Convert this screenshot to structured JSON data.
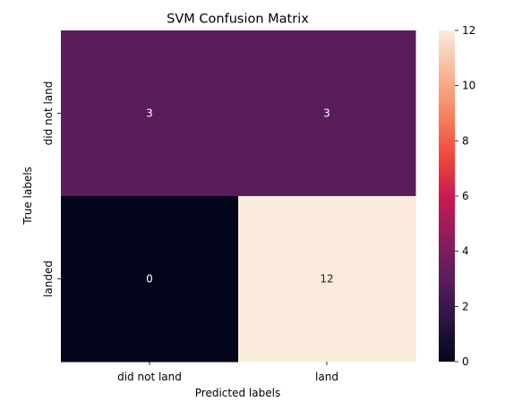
{
  "chart_data": {
    "type": "heatmap",
    "title": "SVM Confusion Matrix",
    "xlabel": "Predicted labels",
    "ylabel": "True labels",
    "x_categories": [
      "did not land",
      "land"
    ],
    "y_categories": [
      "did not land",
      "landed"
    ],
    "values": [
      [
        3,
        3
      ],
      [
        0,
        12
      ]
    ],
    "colorbar": {
      "min": 0,
      "max": 12,
      "ticks": [
        "0",
        "2",
        "4",
        "6",
        "8",
        "10",
        "12"
      ]
    },
    "colormap": "rocket",
    "colormap_stops": [
      "#03051a",
      "#2b1544",
      "#5a1d5b",
      "#8e1d5b",
      "#cb1b4f",
      "#ef4a3c",
      "#f58660",
      "#f8b898",
      "#faebdd"
    ]
  }
}
